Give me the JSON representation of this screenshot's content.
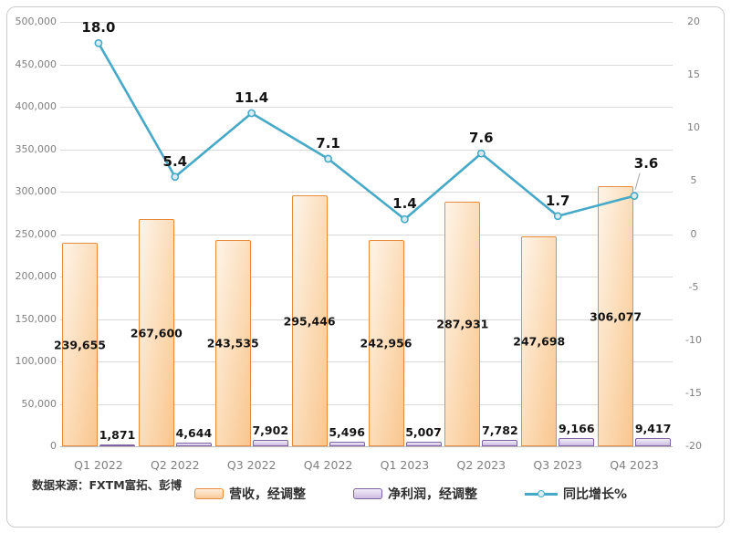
{
  "source_note": "数据来源：FXTM富拓、彭博",
  "chart_data": {
    "type": "combo-bar-line",
    "title": "",
    "categories": [
      "Q1 2022",
      "Q2 2022",
      "Q3 2022",
      "Q4 2022",
      "Q1 2023",
      "Q2 2023",
      "Q3 2023",
      "Q4 2023"
    ],
    "series": [
      {
        "name": "营收，经调整",
        "type": "bar",
        "axis": "left",
        "values": [
          239655,
          267600,
          243535,
          295446,
          242956,
          287931,
          247698,
          306077
        ]
      },
      {
        "name": "净利润，经调整",
        "type": "bar",
        "axis": "left",
        "values": [
          1871,
          4644,
          7902,
          5496,
          5007,
          7782,
          9166,
          9417
        ]
      },
      {
        "name": "同比增长%",
        "type": "line",
        "axis": "right",
        "values": [
          18.0,
          5.4,
          11.4,
          7.1,
          1.4,
          7.6,
          1.7,
          3.6
        ]
      }
    ],
    "left_axis": {
      "min": 0,
      "max": 500000,
      "step": 50000
    },
    "right_axis": {
      "min": -20,
      "max": 20,
      "step": 5
    },
    "grid": true,
    "legend_position": "bottom"
  },
  "colors": {
    "revenue_border": "#e78c3c",
    "revenue_fill": "#fbd4a8",
    "profit_border": "#7f63a3",
    "profit_fill": "#cdbce2",
    "line": "#45a9c7",
    "marker_fill": "#d9edf5",
    "gridline": "#d9d9d9",
    "axis_text": "#808080",
    "data_label_text": "#141414",
    "leader_line": "#a6a6a6",
    "frame_border": "#cbcbcb"
  }
}
